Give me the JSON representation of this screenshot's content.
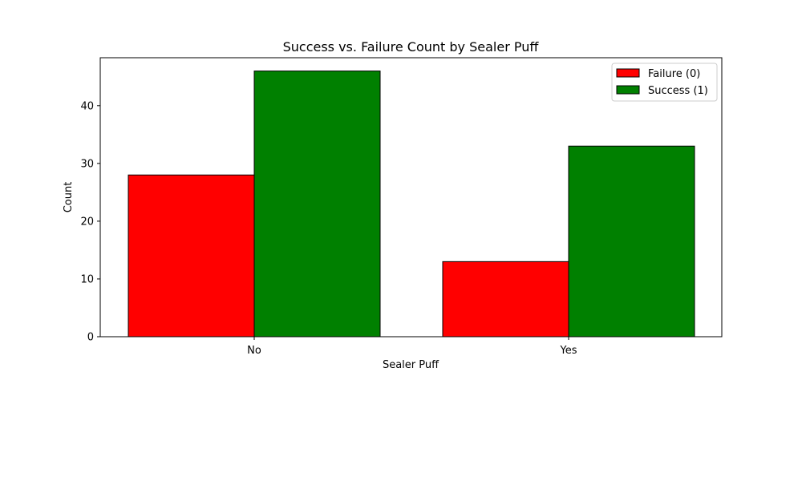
{
  "chart_data": {
    "type": "bar",
    "title": "Success vs. Failure Count by Sealer Puff",
    "xlabel": "Sealer Puff",
    "ylabel": "Count",
    "categories": [
      "No",
      "Yes"
    ],
    "series": [
      {
        "name": "Failure (0)",
        "values": [
          28,
          13
        ],
        "color": "#ff0000"
      },
      {
        "name": "Success (1)",
        "values": [
          46,
          33
        ],
        "color": "#008000"
      }
    ],
    "ylim": [
      0,
      48.3
    ],
    "yticks": [
      0,
      10,
      20,
      30,
      40
    ],
    "grid": false,
    "legend_position": "top-right"
  }
}
